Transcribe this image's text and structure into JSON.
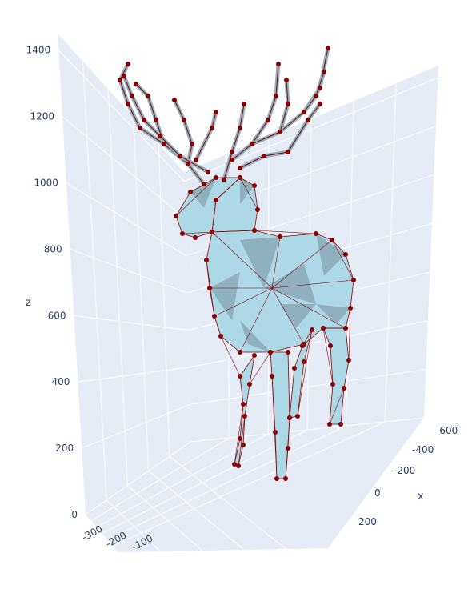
{
  "chart_data": {
    "type": "mesh3d",
    "title": "",
    "axes": {
      "x": {
        "label": "x",
        "ticks": [
          -600,
          -400,
          -200,
          0,
          200
        ]
      },
      "y": {
        "label": "",
        "ticks": [
          -300,
          -200,
          -100
        ]
      },
      "z": {
        "label": "z",
        "ticks": [
          0,
          200,
          400,
          600,
          800,
          1000,
          1200,
          1400
        ],
        "range": [
          0,
          1450
        ]
      }
    },
    "grid": true,
    "colors": {
      "scene_background": "#e5ecf6",
      "grid_line": "#ffffff",
      "mesh_face_light": "#add8e6",
      "mesh_face_dark": "#8fb0bd",
      "edge_line": "#8b0000",
      "vertex_marker": "#8b0000",
      "tick_text": "#2a3f5f"
    },
    "object": "deer mesh with antlers",
    "vertices_shown": true,
    "edges_shown": true
  }
}
